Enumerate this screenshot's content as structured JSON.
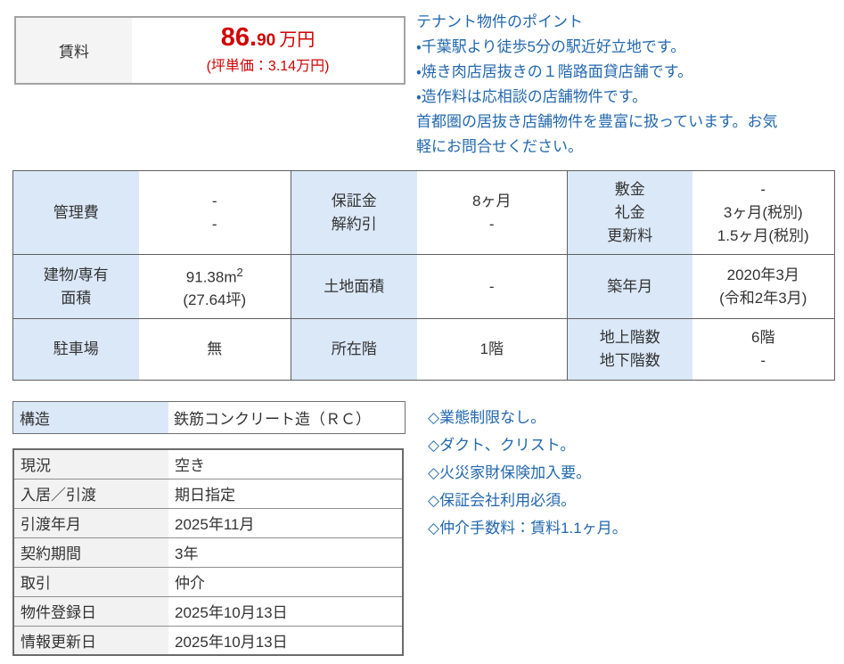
{
  "colors": {
    "accent_blue": "#2368af",
    "price_red": "#d10000",
    "label_blue_bg": "#dbe8f8",
    "label_gray_bg": "#f2f2f2"
  },
  "rent": {
    "label": "賃料",
    "amount_main": "86.",
    "amount_sub": "90",
    "amount_unit": "万円",
    "tsubo_note": "(坪単価：3.14万円)"
  },
  "points": {
    "title": "テナント物件のポイント",
    "line1": "・千葉駅より徒歩5分の駅近好立地です。",
    "line2": "・焼き肉店居抜きの１階路面貸店舗です。",
    "line3": "・造作料は応相談の店舗物件です。",
    "line4": "首都圏の居抜き店舗物件を豊富に扱っています。お気",
    "line5": "軽にお問合せください。"
  },
  "main_table": {
    "area_sup": "2",
    "rows": [
      [
        [
          "管理費"
        ],
        [
          "-",
          "-"
        ],
        [
          "保証金",
          "解約引"
        ],
        [
          "8ヶ月",
          "-"
        ],
        [
          "敷金",
          "礼金",
          "更新料"
        ],
        [
          "-",
          "3ヶ月(税別)",
          "1.5ヶ月(税別)"
        ]
      ],
      [
        [
          "建物/専有",
          "面積"
        ],
        [
          "91.38m",
          "(27.64坪)"
        ],
        [
          "土地面積"
        ],
        [
          "-"
        ],
        [
          "築年月"
        ],
        [
          "2020年3月",
          "(令和2年3月)"
        ]
      ],
      [
        [
          "駐車場"
        ],
        [
          "無"
        ],
        [
          "所在階"
        ],
        [
          "1階"
        ],
        [
          "地上階数",
          "地下階数"
        ],
        [
          "6階",
          "-"
        ]
      ]
    ]
  },
  "structure": {
    "label": "構造",
    "value": "鉄筋コンクリート造（ＲＣ）"
  },
  "bottom_table": {
    "rows": [
      {
        "label": "現況",
        "value": "空き"
      },
      {
        "label": "入居／引渡",
        "value": "期日指定"
      },
      {
        "label": "引渡年月",
        "value": "2025年11月"
      },
      {
        "label": "契約期間",
        "value": "3年"
      },
      {
        "label": "取引",
        "value": "仲介"
      },
      {
        "label": "物件登録日",
        "value": "2025年10月13日"
      },
      {
        "label": "情報更新日",
        "value": "2025年10月13日"
      }
    ]
  },
  "notes": {
    "line1": "◇業態制限なし。",
    "line2": "◇ダクト、クリスト。",
    "line3": "◇火災家財保険加入要。",
    "line4": "◇保証会社利用必須。",
    "line5": "◇仲介手数料：賃料1.1ヶ月。"
  }
}
